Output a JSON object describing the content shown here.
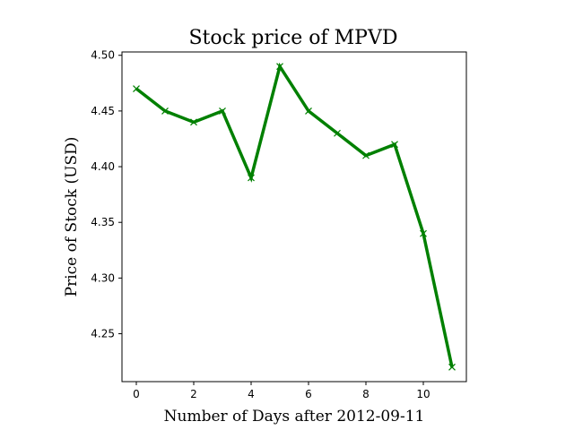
{
  "chart_data": {
    "type": "line",
    "title": "Stock price of MPVD",
    "xlabel": "Number of Days after 2012-09-11",
    "ylabel": "Price of Stock (USD)",
    "x": [
      0,
      1,
      2,
      3,
      4,
      5,
      6,
      7,
      8,
      9,
      10,
      11
    ],
    "series": [
      {
        "values": [
          4.47,
          4.45,
          4.44,
          4.45,
          4.39,
          4.49,
          4.45,
          4.43,
          4.41,
          4.42,
          4.34,
          4.22
        ],
        "color": "#008000",
        "marker": "x"
      }
    ],
    "xlim": [
      -0.5,
      11.5
    ],
    "ylim": [
      4.207,
      4.503
    ],
    "xticks": [
      0,
      2,
      4,
      6,
      8,
      10
    ],
    "xtick_labels": [
      "0",
      "2",
      "4",
      "6",
      "8",
      "10"
    ],
    "yticks": [
      4.25,
      4.3,
      4.35,
      4.4,
      4.45,
      4.5
    ],
    "ytick_labels": [
      "4.25",
      "4.30",
      "4.35",
      "4.40",
      "4.45",
      "4.50"
    ],
    "grid": false
  }
}
